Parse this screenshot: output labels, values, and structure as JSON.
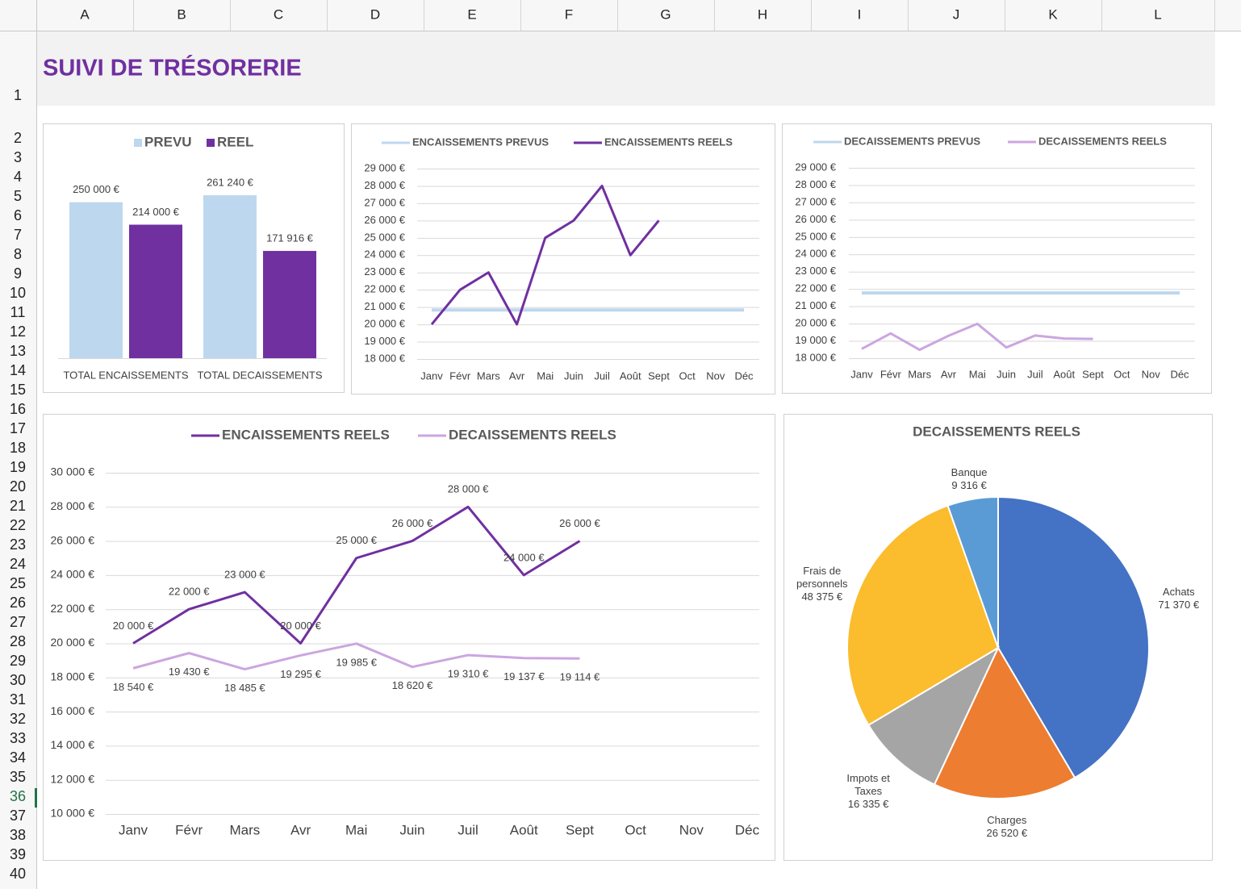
{
  "sheet": {
    "columns": [
      "A",
      "B",
      "C",
      "D",
      "E",
      "F",
      "G",
      "H",
      "I",
      "J",
      "K",
      "L"
    ],
    "rows": [
      1,
      2,
      3,
      4,
      5,
      6,
      7,
      8,
      9,
      10,
      11,
      12,
      13,
      14,
      15,
      16,
      17,
      18,
      19,
      20,
      21,
      22,
      23,
      24,
      25,
      26,
      27,
      28,
      29,
      30,
      31,
      32,
      33,
      34,
      35,
      36,
      37,
      38,
      39,
      40
    ]
  },
  "title": "SUIVI DE TRÉSORERIE",
  "chart_data": [
    {
      "type": "bar",
      "categories": [
        "TOTAL ENCAISSEMENTS",
        "TOTAL DECAISSEMENTS"
      ],
      "series": [
        {
          "name": "PREVU",
          "color": "#bdd7ee",
          "values": [
            250000,
            261240
          ],
          "value_labels": [
            "250 000 €",
            "261 240 €"
          ]
        },
        {
          "name": "REEL",
          "color": "#7030a0",
          "values": [
            214000,
            171916
          ],
          "value_labels": [
            "214 000 €",
            "171 916 €"
          ]
        }
      ],
      "ylim": [
        0,
        300000
      ]
    },
    {
      "type": "line",
      "categories": [
        "Janv",
        "Févr",
        "Mars",
        "Avr",
        "Mai",
        "Juin",
        "Juil",
        "Août",
        "Sept",
        "Oct",
        "Nov",
        "Déc"
      ],
      "series": [
        {
          "name": "ENCAISSEMENTS PREVUS",
          "color": "#bdd7ee",
          "values": [
            20833,
            20833,
            20833,
            20833,
            20833,
            20833,
            20833,
            20833,
            20833,
            20833,
            20833,
            20833
          ]
        },
        {
          "name": "ENCAISSEMENTS REELS",
          "color": "#7030a0",
          "values": [
            20000,
            22000,
            23000,
            20000,
            25000,
            26000,
            28000,
            24000,
            26000,
            null,
            null,
            null
          ]
        }
      ],
      "ylim": [
        18000,
        29000
      ],
      "yticks": [
        {
          "value": 18000,
          "label": "18 000 €"
        },
        {
          "value": 19000,
          "label": "19 000 €"
        },
        {
          "value": 20000,
          "label": "20 000 €"
        },
        {
          "value": 21000,
          "label": "21 000 €"
        },
        {
          "value": 22000,
          "label": "22 000 €"
        },
        {
          "value": 23000,
          "label": "23 000 €"
        },
        {
          "value": 24000,
          "label": "24 000 €"
        },
        {
          "value": 25000,
          "label": "25 000 €"
        },
        {
          "value": 26000,
          "label": "26 000 €"
        },
        {
          "value": 27000,
          "label": "27 000 €"
        },
        {
          "value": 28000,
          "label": "28 000 €"
        },
        {
          "value": 29000,
          "label": "29 000 €"
        }
      ],
      "grid": true
    },
    {
      "type": "line",
      "categories": [
        "Janv",
        "Févr",
        "Mars",
        "Avr",
        "Mai",
        "Juin",
        "Juil",
        "Août",
        "Sept",
        "Oct",
        "Nov",
        "Déc"
      ],
      "series": [
        {
          "name": "DECAISSEMENTS PREVUS",
          "color": "#bdd7ee",
          "values": [
            21770,
            21770,
            21770,
            21770,
            21770,
            21770,
            21770,
            21770,
            21770,
            21770,
            21770,
            21770
          ]
        },
        {
          "name": "DECAISSEMENTS REELS",
          "color": "#cba6df",
          "values": [
            18540,
            19430,
            18485,
            19295,
            19985,
            18620,
            19310,
            19137,
            19114,
            null,
            null,
            null
          ]
        }
      ],
      "ylim": [
        18000,
        29000
      ],
      "yticks": [
        {
          "value": 18000,
          "label": "18 000 €"
        },
        {
          "value": 19000,
          "label": "19 000 €"
        },
        {
          "value": 20000,
          "label": "20 000 €"
        },
        {
          "value": 21000,
          "label": "21 000 €"
        },
        {
          "value": 22000,
          "label": "22 000 €"
        },
        {
          "value": 23000,
          "label": "23 000 €"
        },
        {
          "value": 24000,
          "label": "24 000 €"
        },
        {
          "value": 25000,
          "label": "25 000 €"
        },
        {
          "value": 26000,
          "label": "26 000 €"
        },
        {
          "value": 27000,
          "label": "27 000 €"
        },
        {
          "value": 28000,
          "label": "28 000 €"
        },
        {
          "value": 29000,
          "label": "29 000 €"
        }
      ],
      "grid": true
    },
    {
      "type": "line",
      "categories": [
        "Janv",
        "Févr",
        "Mars",
        "Avr",
        "Mai",
        "Juin",
        "Juil",
        "Août",
        "Sept",
        "Oct",
        "Nov",
        "Déc"
      ],
      "series": [
        {
          "name": "ENCAISSEMENTS REELS",
          "color": "#7030a0",
          "values": [
            20000,
            22000,
            23000,
            20000,
            25000,
            26000,
            28000,
            24000,
            26000,
            null,
            null,
            null
          ],
          "value_labels": [
            "20 000 €",
            "22 000 €",
            "23 000 €",
            "20 000 €",
            "25 000 €",
            "26 000 €",
            "28 000 €",
            "24 000 €",
            "26 000 €",
            null,
            null,
            null
          ]
        },
        {
          "name": "DECAISSEMENTS REELS",
          "color": "#cba6df",
          "values": [
            18540,
            19430,
            18485,
            19295,
            19985,
            18620,
            19310,
            19137,
            19114,
            null,
            null,
            null
          ],
          "value_labels": [
            "18 540 €",
            "19 430 €",
            "18 485 €",
            "19 295 €",
            "19 985 €",
            "18 620 €",
            "19 310 €",
            "19 137 €",
            "19 114 €",
            null,
            null,
            null
          ]
        }
      ],
      "ylim": [
        10000,
        30000
      ],
      "yticks": [
        {
          "value": 10000,
          "label": "10 000 €"
        },
        {
          "value": 12000,
          "label": "12 000 €"
        },
        {
          "value": 14000,
          "label": "14 000 €"
        },
        {
          "value": 16000,
          "label": "16 000 €"
        },
        {
          "value": 18000,
          "label": "18 000 €"
        },
        {
          "value": 20000,
          "label": "20 000 €"
        },
        {
          "value": 22000,
          "label": "22 000 €"
        },
        {
          "value": 24000,
          "label": "24 000 €"
        },
        {
          "value": 26000,
          "label": "26 000 €"
        },
        {
          "value": 28000,
          "label": "28 000 €"
        },
        {
          "value": 30000,
          "label": "30 000 €"
        }
      ],
      "grid": true
    },
    {
      "type": "pie",
      "title": "DECAISSEMENTS REELS",
      "categories": [
        "Achats",
        "Charges",
        "Impots et Taxes",
        "Frais de personnels",
        "Banque"
      ],
      "values": [
        71370,
        26520,
        16335,
        48375,
        9316
      ],
      "value_labels": [
        "71 370 €",
        "26 520 €",
        "16 335 €",
        "48 375 €",
        "9 316 €"
      ],
      "colors": [
        "#4472c4",
        "#ed7d31",
        "#a5a5a5",
        "#fbbc2d",
        "#5b9bd5"
      ]
    }
  ]
}
